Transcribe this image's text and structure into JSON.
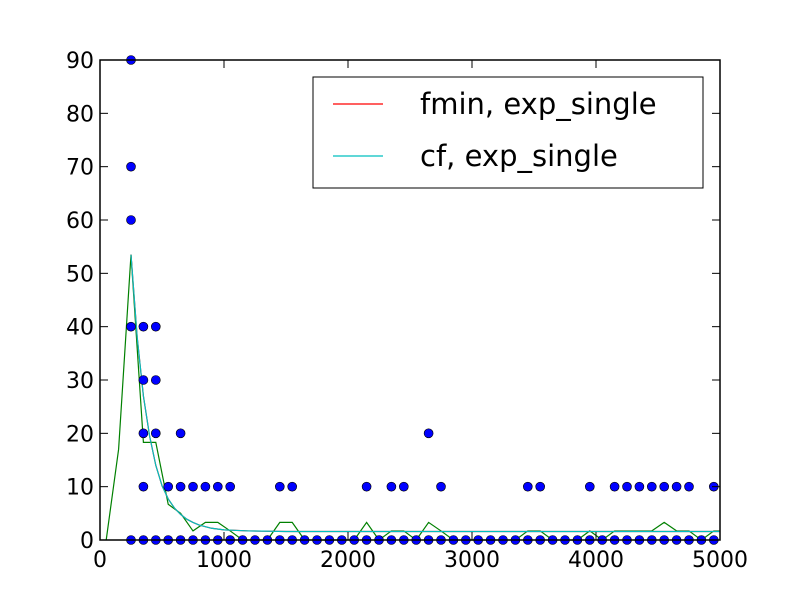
{
  "chart_data": {
    "type": "scatter",
    "title": "",
    "xlabel": "",
    "ylabel": "",
    "xlim": [
      0,
      5000
    ],
    "ylim": [
      0,
      90
    ],
    "xticks": [
      0,
      1000,
      2000,
      3000,
      4000,
      5000
    ],
    "yticks": [
      0,
      10,
      20,
      30,
      40,
      50,
      60,
      70,
      80,
      90
    ],
    "grid": false,
    "legend_position": "top-right",
    "legend": [
      {
        "label": "fmin, exp_single",
        "color": "#ff0000"
      },
      {
        "label": "cf, exp_single",
        "color": "#00bfbf"
      }
    ],
    "series": [
      {
        "kind": "points",
        "color": "#0000ff",
        "points": [
          [
            250,
            90
          ],
          [
            250,
            70
          ],
          [
            250,
            60
          ],
          [
            250,
            40
          ],
          [
            250,
            0
          ],
          [
            350,
            40
          ],
          [
            350,
            30
          ],
          [
            350,
            20
          ],
          [
            350,
            10
          ],
          [
            350,
            0
          ],
          [
            450,
            40
          ],
          [
            450,
            30
          ],
          [
            450,
            20
          ],
          [
            450,
            0
          ],
          [
            550,
            10
          ],
          [
            550,
            0
          ],
          [
            650,
            20
          ],
          [
            650,
            10
          ],
          [
            650,
            0
          ],
          [
            750,
            10
          ],
          [
            750,
            0
          ],
          [
            850,
            10
          ],
          [
            850,
            0
          ],
          [
            950,
            10
          ],
          [
            950,
            0
          ],
          [
            1050,
            10
          ],
          [
            1050,
            0
          ],
          [
            1150,
            0
          ],
          [
            1250,
            0
          ],
          [
            1350,
            0
          ],
          [
            1450,
            10
          ],
          [
            1450,
            0
          ],
          [
            1550,
            10
          ],
          [
            1550,
            0
          ],
          [
            1650,
            0
          ],
          [
            1750,
            0
          ],
          [
            1850,
            0
          ],
          [
            1950,
            0
          ],
          [
            2050,
            0
          ],
          [
            2150,
            10
          ],
          [
            2150,
            0
          ],
          [
            2250,
            0
          ],
          [
            2350,
            10
          ],
          [
            2350,
            0
          ],
          [
            2450,
            10
          ],
          [
            2450,
            0
          ],
          [
            2550,
            0
          ],
          [
            2650,
            20
          ],
          [
            2650,
            0
          ],
          [
            2750,
            10
          ],
          [
            2750,
            0
          ],
          [
            2850,
            0
          ],
          [
            2950,
            0
          ],
          [
            3050,
            0
          ],
          [
            3150,
            0
          ],
          [
            3250,
            0
          ],
          [
            3350,
            0
          ],
          [
            3450,
            10
          ],
          [
            3450,
            0
          ],
          [
            3550,
            10
          ],
          [
            3550,
            0
          ],
          [
            3650,
            0
          ],
          [
            3750,
            0
          ],
          [
            3850,
            0
          ],
          [
            3950,
            10
          ],
          [
            3950,
            0
          ],
          [
            4050,
            0
          ],
          [
            4150,
            10
          ],
          [
            4150,
            0
          ],
          [
            4250,
            10
          ],
          [
            4250,
            0
          ],
          [
            4350,
            10
          ],
          [
            4350,
            0
          ],
          [
            4450,
            10
          ],
          [
            4450,
            0
          ],
          [
            4550,
            10
          ],
          [
            4550,
            0
          ],
          [
            4650,
            10
          ],
          [
            4650,
            0
          ],
          [
            4750,
            10
          ],
          [
            4750,
            0
          ],
          [
            4850,
            0
          ],
          [
            4950,
            10
          ],
          [
            4950,
            0
          ]
        ]
      },
      {
        "kind": "line",
        "color": "#008000",
        "x": [
          50,
          150,
          250,
          350,
          450,
          550,
          650,
          750,
          850,
          950,
          1050,
          1150,
          1250,
          1350,
          1450,
          1550,
          1650,
          1750,
          1850,
          1950,
          2050,
          2150,
          2250,
          2350,
          2450,
          2550,
          2650,
          2750,
          2850,
          2950,
          3050,
          3150,
          3250,
          3350,
          3450,
          3550,
          3650,
          3750,
          3850,
          3950,
          4050,
          4150,
          4250,
          4350,
          4450,
          4550,
          4650,
          4750,
          4850,
          4950,
          5000
        ],
        "y": [
          0,
          17,
          53.5,
          18.3,
          18.3,
          6.7,
          5,
          1.7,
          3.3,
          3.3,
          1.7,
          0,
          0,
          0,
          3.3,
          3.3,
          0,
          0,
          0,
          0,
          0,
          3.3,
          0,
          1.7,
          1.7,
          0,
          3.3,
          1.7,
          0,
          0,
          0,
          0,
          0,
          0,
          1.7,
          1.7,
          0,
          0,
          0,
          1.7,
          0,
          1.7,
          1.7,
          1.7,
          1.7,
          3.3,
          1.7,
          1.7,
          0,
          1.7,
          1.7
        ]
      },
      {
        "name": "fmin, exp_single",
        "kind": "line",
        "color": "#ff0000",
        "x": [
          250,
          300,
          350,
          400,
          450,
          500,
          550,
          600,
          650,
          700,
          750,
          800,
          900,
          1000,
          1200,
          1500,
          2000,
          3000,
          4000,
          5000
        ],
        "y": [
          53.5,
          38,
          27,
          19.5,
          14,
          10.2,
          7.7,
          6,
          4.8,
          3.9,
          3.3,
          2.8,
          2.2,
          1.9,
          1.7,
          1.6,
          1.6,
          1.6,
          1.6,
          1.6
        ]
      },
      {
        "name": "cf, exp_single",
        "kind": "line",
        "color": "#00bfbf",
        "x": [
          250,
          300,
          350,
          400,
          450,
          500,
          550,
          600,
          650,
          700,
          750,
          800,
          900,
          1000,
          1200,
          1500,
          2000,
          3000,
          4000,
          5000
        ],
        "y": [
          53.5,
          38,
          27,
          19.5,
          14,
          10.2,
          7.7,
          6,
          4.8,
          3.9,
          3.3,
          2.8,
          2.2,
          1.9,
          1.7,
          1.6,
          1.6,
          1.6,
          1.6,
          1.6
        ]
      }
    ]
  }
}
